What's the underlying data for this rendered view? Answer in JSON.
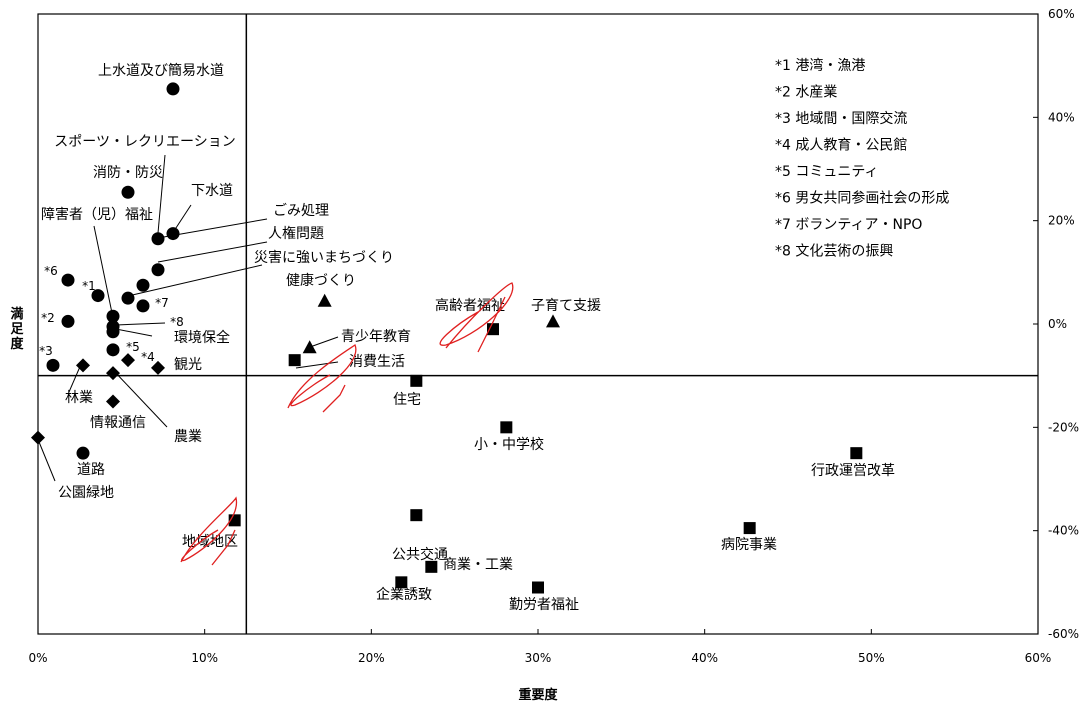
{
  "chart_data": {
    "type": "scatter",
    "title": "",
    "xlabel": "重要度",
    "ylabel": "満足度",
    "xlim": [
      0,
      60
    ],
    "ylim": [
      -60,
      60
    ],
    "x_ticks": [
      "0%",
      "10%",
      "20%",
      "30%",
      "40%",
      "50%",
      "60%"
    ],
    "y_ticks": [
      "-60%",
      "-40%",
      "-20%",
      "0%",
      "20%",
      "40%",
      "60%"
    ],
    "crosshair": {
      "x": 12.5,
      "y": -10
    },
    "grid": false,
    "legend_position": "top-right",
    "footnotes": [
      "*1 港湾・漁港",
      "*2 水産業",
      "*3 地域間・国際交流",
      "*4 成人教育・公民館",
      "*5 コミュニティ",
      "*6 男女共同参画社会の形成",
      "*7 ボランティア・NPO",
      "*8 文化芸術の振興"
    ],
    "points": [
      {
        "label": "上水道及び簡易水道",
        "marker": "circle",
        "x": 8.1,
        "y": 45.5
      },
      {
        "label": "消防・防災",
        "marker": "circle",
        "x": 5.4,
        "y": 25.5
      },
      {
        "label": "下水道",
        "marker": "circle",
        "x": 8.1,
        "y": 17.5
      },
      {
        "label": "スポーツ・レクリエーション",
        "marker": "circle",
        "x": 7.2,
        "y": 16.5
      },
      {
        "label": "ごみ処理",
        "marker": "circle",
        "x": 7.2,
        "y": 10.5
      },
      {
        "label": "人権問題",
        "marker": "circle",
        "x": 6.3,
        "y": 7.5
      },
      {
        "label": "災害に強いまちづくり",
        "marker": "circle",
        "x": 5.4,
        "y": 5
      },
      {
        "label": "*6",
        "marker": "circle",
        "x": 1.8,
        "y": 8.5
      },
      {
        "label": "*1",
        "marker": "circle",
        "x": 3.6,
        "y": 5.5
      },
      {
        "label": "*7",
        "marker": "circle",
        "x": 6.3,
        "y": 3.5
      },
      {
        "label": "障害者（児）福祉",
        "marker": "circle",
        "x": 4.5,
        "y": 1.5
      },
      {
        "label": "*2",
        "marker": "circle",
        "x": 1.8,
        "y": 0.5
      },
      {
        "label": "*8",
        "marker": "circle",
        "x": 4.5,
        "y": -1.5
      },
      {
        "label": "環境保全",
        "marker": "circle",
        "x": 4.5,
        "y": -0.5
      },
      {
        "label": "*5",
        "marker": "circle",
        "x": 4.5,
        "y": -5
      },
      {
        "label": "*3",
        "marker": "circle",
        "x": 0.9,
        "y": -8
      },
      {
        "label": "道路",
        "marker": "circle",
        "x": 2.7,
        "y": -25
      },
      {
        "label": "*4",
        "marker": "diamond",
        "x": 5.4,
        "y": -7
      },
      {
        "label": "観光",
        "marker": "diamond",
        "x": 7.2,
        "y": -8.5
      },
      {
        "label": "林業",
        "marker": "diamond",
        "x": 2.7,
        "y": -8
      },
      {
        "label": "農業",
        "marker": "diamond",
        "x": 4.5,
        "y": -9.5
      },
      {
        "label": "情報通信",
        "marker": "diamond",
        "x": 4.5,
        "y": -15
      },
      {
        "label": "公園緑地",
        "marker": "diamond",
        "x": 0,
        "y": -22
      },
      {
        "label": "健康づくり",
        "marker": "triangle",
        "x": 17.2,
        "y": 4.5
      },
      {
        "label": "子育て支援",
        "marker": "triangle",
        "x": 30.9,
        "y": 0.5
      },
      {
        "label": "青少年教育",
        "marker": "triangle",
        "x": 16.3,
        "y": -4.5
      },
      {
        "label": "高齢者福祉",
        "marker": "square",
        "x": 27.3,
        "y": -1
      },
      {
        "label": "消費生活",
        "marker": "square",
        "x": 15.4,
        "y": -7
      },
      {
        "label": "住宅",
        "marker": "square",
        "x": 22.7,
        "y": -11
      },
      {
        "label": "小・中学校",
        "marker": "square",
        "x": 28.1,
        "y": -20
      },
      {
        "label": "行政運営改革",
        "marker": "square",
        "x": 49.1,
        "y": -25
      },
      {
        "label": "公共交通",
        "marker": "square",
        "x": 22.7,
        "y": -37
      },
      {
        "label": "地域地区",
        "marker": "square",
        "x": 11.8,
        "y": -38
      },
      {
        "label": "病院事業",
        "marker": "square",
        "x": 42.7,
        "y": -39.5
      },
      {
        "label": "商業・工業",
        "marker": "square",
        "x": 23.6,
        "y": -47
      },
      {
        "label": "企業誘致",
        "marker": "square",
        "x": 21.8,
        "y": -50
      },
      {
        "label": "勤労者福祉",
        "marker": "square",
        "x": 30,
        "y": -51
      }
    ]
  }
}
